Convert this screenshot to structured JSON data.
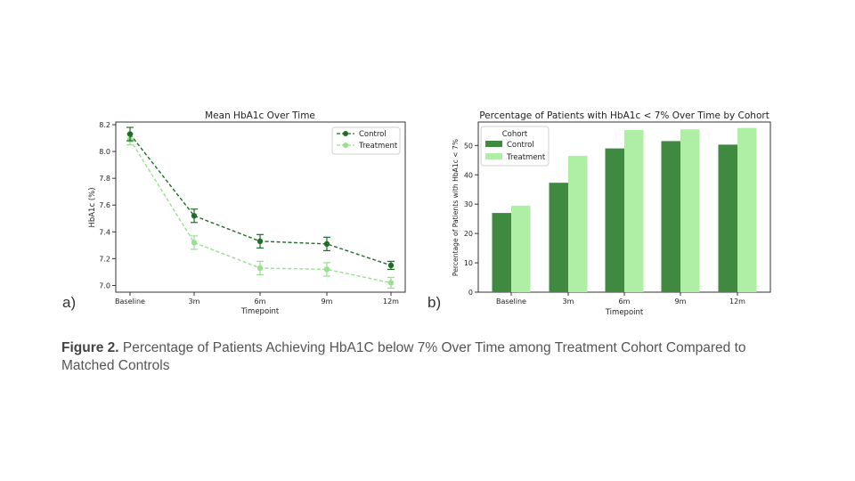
{
  "figure": {
    "panel_a_label": "a)",
    "panel_b_label": "b)",
    "caption_bold": "Figure 2.",
    "caption_text": " Percentage of Patients Achieving HbA1C below 7% Over Time among Treatment Cohort Compared to Matched Controls"
  },
  "colors": {
    "control": "#1f6e28",
    "treatment": "#98e08e",
    "bar_control": "#3f8a40",
    "bar_treatment": "#aeeea5"
  },
  "chart_data": [
    {
      "type": "line",
      "title": "Mean HbA1c Over Time",
      "xlabel": "Timepoint",
      "ylabel": "HbA1c (%)",
      "categories": [
        "Baseline",
        "3m",
        "6m",
        "9m",
        "12m"
      ],
      "ylim": [
        6.95,
        8.22
      ],
      "yticks": [
        "7.0",
        "7.2",
        "7.4",
        "7.6",
        "7.8",
        "8.0",
        "8.2"
      ],
      "grid": false,
      "legend_position": "top-right",
      "line_style": "dashed",
      "series": [
        {
          "name": "Control",
          "values": [
            8.13,
            7.52,
            7.33,
            7.31,
            7.15
          ],
          "error": [
            0.05,
            0.05,
            0.05,
            0.05,
            0.03
          ]
        },
        {
          "name": "Treatment",
          "values": [
            8.09,
            7.32,
            7.13,
            7.12,
            7.02
          ],
          "error": [
            0.04,
            0.05,
            0.05,
            0.05,
            0.04
          ]
        }
      ]
    },
    {
      "type": "bar",
      "title": "Percentage of Patients with HbA1c < 7% Over Time by Cohort",
      "xlabel": "Timepoint",
      "ylabel": "Percentage of Patients with HbA1c < 7%",
      "categories": [
        "Baseline",
        "3m",
        "6m",
        "9m",
        "12m"
      ],
      "ylim": [
        0,
        58
      ],
      "yticks": [
        "0",
        "10",
        "20",
        "30",
        "40",
        "50"
      ],
      "grid": false,
      "legend_title": "Cohort",
      "legend_position": "top-left",
      "series": [
        {
          "name": "Control",
          "values": [
            27,
            37.3,
            49,
            51.5,
            50.3
          ]
        },
        {
          "name": "Treatment",
          "values": [
            29.5,
            46.5,
            55.3,
            55.5,
            56
          ]
        }
      ]
    }
  ]
}
